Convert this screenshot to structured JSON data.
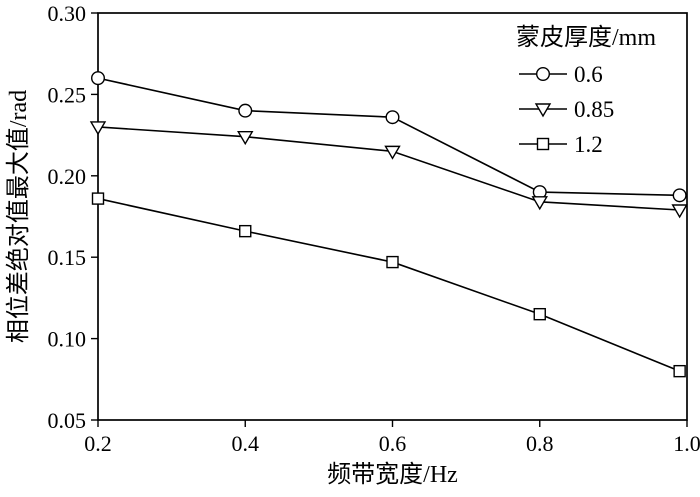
{
  "chart_data": {
    "type": "line",
    "title": "",
    "xlabel": "频带宽度/Hz",
    "ylabel": "相位差绝对值最大值/rad",
    "xlim": [
      0.2,
      1.0
    ],
    "ylim": [
      0.05,
      0.3
    ],
    "xticks": [
      0.2,
      0.4,
      0.6,
      0.8,
      1.0
    ],
    "xtick_labels": [
      "0.2",
      "0.4",
      "0.6",
      "0.8",
      "1.0"
    ],
    "yticks": [
      0.05,
      0.1,
      0.15,
      0.2,
      0.25,
      0.3
    ],
    "ytick_labels": [
      "0.05",
      "0.10",
      "0.15",
      "0.20",
      "0.25",
      "0.30"
    ],
    "grid": false,
    "legend_title": "蒙皮厚度/mm",
    "legend_position": "top-right-inside",
    "x": [
      0.2,
      0.4,
      0.6,
      0.8,
      0.99
    ],
    "series": [
      {
        "name": "0.6",
        "marker": "circle",
        "values": [
          0.26,
          0.24,
          0.236,
          0.19,
          0.188
        ]
      },
      {
        "name": "0.85",
        "marker": "triangle-down",
        "values": [
          0.23,
          0.224,
          0.215,
          0.184,
          0.179
        ]
      },
      {
        "name": "1.2",
        "marker": "square",
        "values": [
          0.186,
          0.166,
          0.147,
          0.115,
          0.08
        ]
      }
    ],
    "colors": {
      "line": "#000000",
      "marker_fill": "#ffffff",
      "axis": "#000000",
      "background": "#ffffff"
    }
  }
}
